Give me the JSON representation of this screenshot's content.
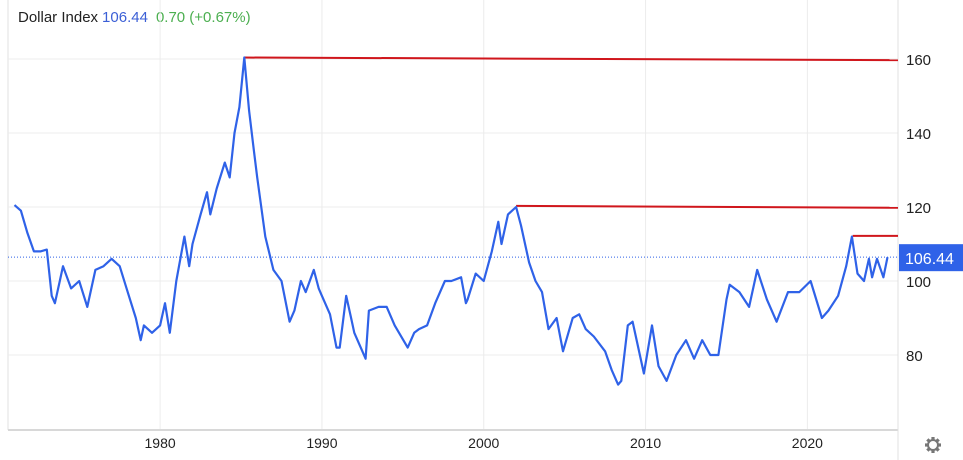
{
  "header": {
    "title": "Dollar Index",
    "price": "106.44",
    "change": "0.70 (+0.67%)"
  },
  "settings_icon": "gear-icon",
  "chart_data": {
    "type": "line",
    "title": "Dollar Index",
    "xlabel": "",
    "ylabel": "",
    "xlim": [
      1970.6,
      2025.6
    ],
    "ylim": [
      60,
      176
    ],
    "x_ticks": [
      1980,
      1990,
      2000,
      2010,
      2020
    ],
    "x_tick_labels": [
      "1980",
      "1990",
      "2000",
      "2010",
      "2020"
    ],
    "y_ticks": [
      80,
      100,
      120,
      140,
      160
    ],
    "y_tick_labels": [
      "80",
      "100",
      "120",
      "140",
      "160"
    ],
    "grid": true,
    "last_value": 106.44,
    "last_value_label": "106.44",
    "colors": {
      "line": "#2f62e8",
      "resistance": "#d0161c",
      "badge": "#2f62e8"
    },
    "resistance_lines": [
      {
        "x": [
          1985.2,
          2025.6
        ],
        "y": [
          160.4,
          159.7
        ]
      },
      {
        "x": [
          2002.0,
          2025.6
        ],
        "y": [
          120.3,
          119.8
        ]
      },
      {
        "x": [
          2022.8,
          2025.6
        ],
        "y": [
          112.2,
          112.2
        ]
      }
    ],
    "series": [
      {
        "name": "Dollar Index",
        "x": [
          1971.0,
          1971.4,
          1971.8,
          1972.2,
          1972.6,
          1973.0,
          1973.3,
          1973.5,
          1973.8,
          1974.0,
          1974.5,
          1975.0,
          1975.5,
          1976.0,
          1976.5,
          1977.0,
          1977.5,
          1978.0,
          1978.5,
          1978.8,
          1979.0,
          1979.5,
          1980.0,
          1980.3,
          1980.6,
          1981.0,
          1981.5,
          1981.8,
          1982.0,
          1982.5,
          1982.9,
          1983.1,
          1983.5,
          1984.0,
          1984.3,
          1984.6,
          1984.9,
          1985.2,
          1985.5,
          1985.8,
          1986.0,
          1986.5,
          1987.0,
          1987.5,
          1988.0,
          1988.3,
          1988.7,
          1989.0,
          1989.5,
          1989.8,
          1990.0,
          1990.5,
          1990.9,
          1991.1,
          1991.5,
          1991.8,
          1992.0,
          1992.7,
          1992.9,
          1993.5,
          1994.0,
          1994.5,
          1995.3,
          1995.7,
          1996.0,
          1996.5,
          1997.0,
          1997.6,
          1998.0,
          1998.6,
          1998.9,
          1999.0,
          1999.5,
          2000.0,
          2000.5,
          2000.9,
          2001.1,
          2001.5,
          2002.0,
          2002.3,
          2002.8,
          2003.2,
          2003.6,
          2004.0,
          2004.5,
          2004.9,
          2005.5,
          2005.9,
          2006.3,
          2006.8,
          2007.5,
          2007.9,
          2008.3,
          2008.5,
          2008.9,
          2009.2,
          2009.9,
          2010.4,
          2010.8,
          2011.3,
          2011.9,
          2012.5,
          2013.0,
          2013.5,
          2014.0,
          2014.5,
          2015.0,
          2015.2,
          2015.8,
          2016.4,
          2016.9,
          2017.5,
          2018.1,
          2018.8,
          2019.5,
          2020.2,
          2020.9,
          2021.3,
          2021.9,
          2022.4,
          2022.75,
          2023.1,
          2023.5,
          2023.8,
          2024.0,
          2024.3,
          2024.7,
          2024.95
        ],
        "values": [
          120.5,
          119,
          113,
          108,
          108,
          108.5,
          96,
          94,
          100,
          104,
          98,
          100,
          93,
          103,
          104,
          106,
          104,
          97,
          90,
          84,
          88,
          86,
          88,
          94,
          86,
          100,
          112,
          104,
          110,
          118,
          124,
          118,
          125,
          132,
          128,
          140,
          147,
          160.4,
          146,
          135,
          128,
          112,
          103,
          100,
          89,
          92,
          100,
          97,
          103,
          98,
          96,
          91,
          82,
          82,
          96,
          90,
          86,
          79,
          92,
          93,
          93,
          88,
          82,
          86,
          87,
          88,
          94,
          100,
          100,
          101,
          94,
          95,
          102,
          100,
          108,
          116,
          110,
          118,
          120,
          115,
          105,
          100,
          97,
          87,
          90,
          81,
          90,
          91,
          87,
          85,
          81,
          76,
          72,
          73,
          88,
          89,
          75,
          88,
          77,
          73,
          80,
          84,
          79,
          84,
          80,
          80,
          95,
          99,
          97,
          93,
          103,
          95,
          89,
          97,
          97,
          100,
          90,
          92,
          96,
          104,
          112,
          102,
          100,
          106,
          101,
          106,
          101,
          106.44
        ]
      }
    ]
  }
}
